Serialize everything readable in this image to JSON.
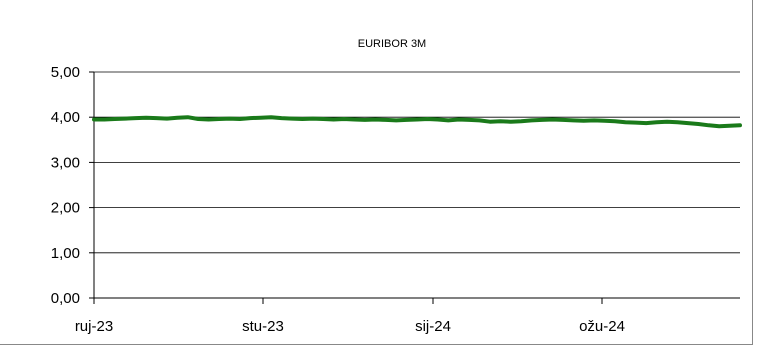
{
  "chart_data": {
    "type": "line",
    "title": "EURIBOR 3M",
    "xlabel": "",
    "ylabel": "",
    "ylim": [
      0,
      5
    ],
    "yticks": [
      "0,00",
      "1,00",
      "2,00",
      "3,00",
      "4,00",
      "5,00"
    ],
    "xticks": [
      "ruj-23",
      "stu-23",
      "sij-24",
      "ožu-24"
    ],
    "grid": true,
    "legend": "none",
    "series": [
      {
        "color": "#1a7a1a",
        "values": [
          3.95,
          3.95,
          3.96,
          3.97,
          3.98,
          3.99,
          3.98,
          3.97,
          3.99,
          4.0,
          3.96,
          3.95,
          3.96,
          3.97,
          3.96,
          3.98,
          3.99,
          4.0,
          3.98,
          3.97,
          3.96,
          3.97,
          3.96,
          3.95,
          3.96,
          3.95,
          3.94,
          3.95,
          3.94,
          3.93,
          3.94,
          3.95,
          3.96,
          3.95,
          3.93,
          3.95,
          3.94,
          3.93,
          3.9,
          3.91,
          3.9,
          3.91,
          3.93,
          3.94,
          3.95,
          3.94,
          3.93,
          3.92,
          3.93,
          3.92,
          3.91,
          3.89,
          3.88,
          3.87,
          3.89,
          3.9,
          3.89,
          3.87,
          3.85,
          3.82,
          3.8,
          3.81,
          3.82
        ]
      }
    ]
  }
}
